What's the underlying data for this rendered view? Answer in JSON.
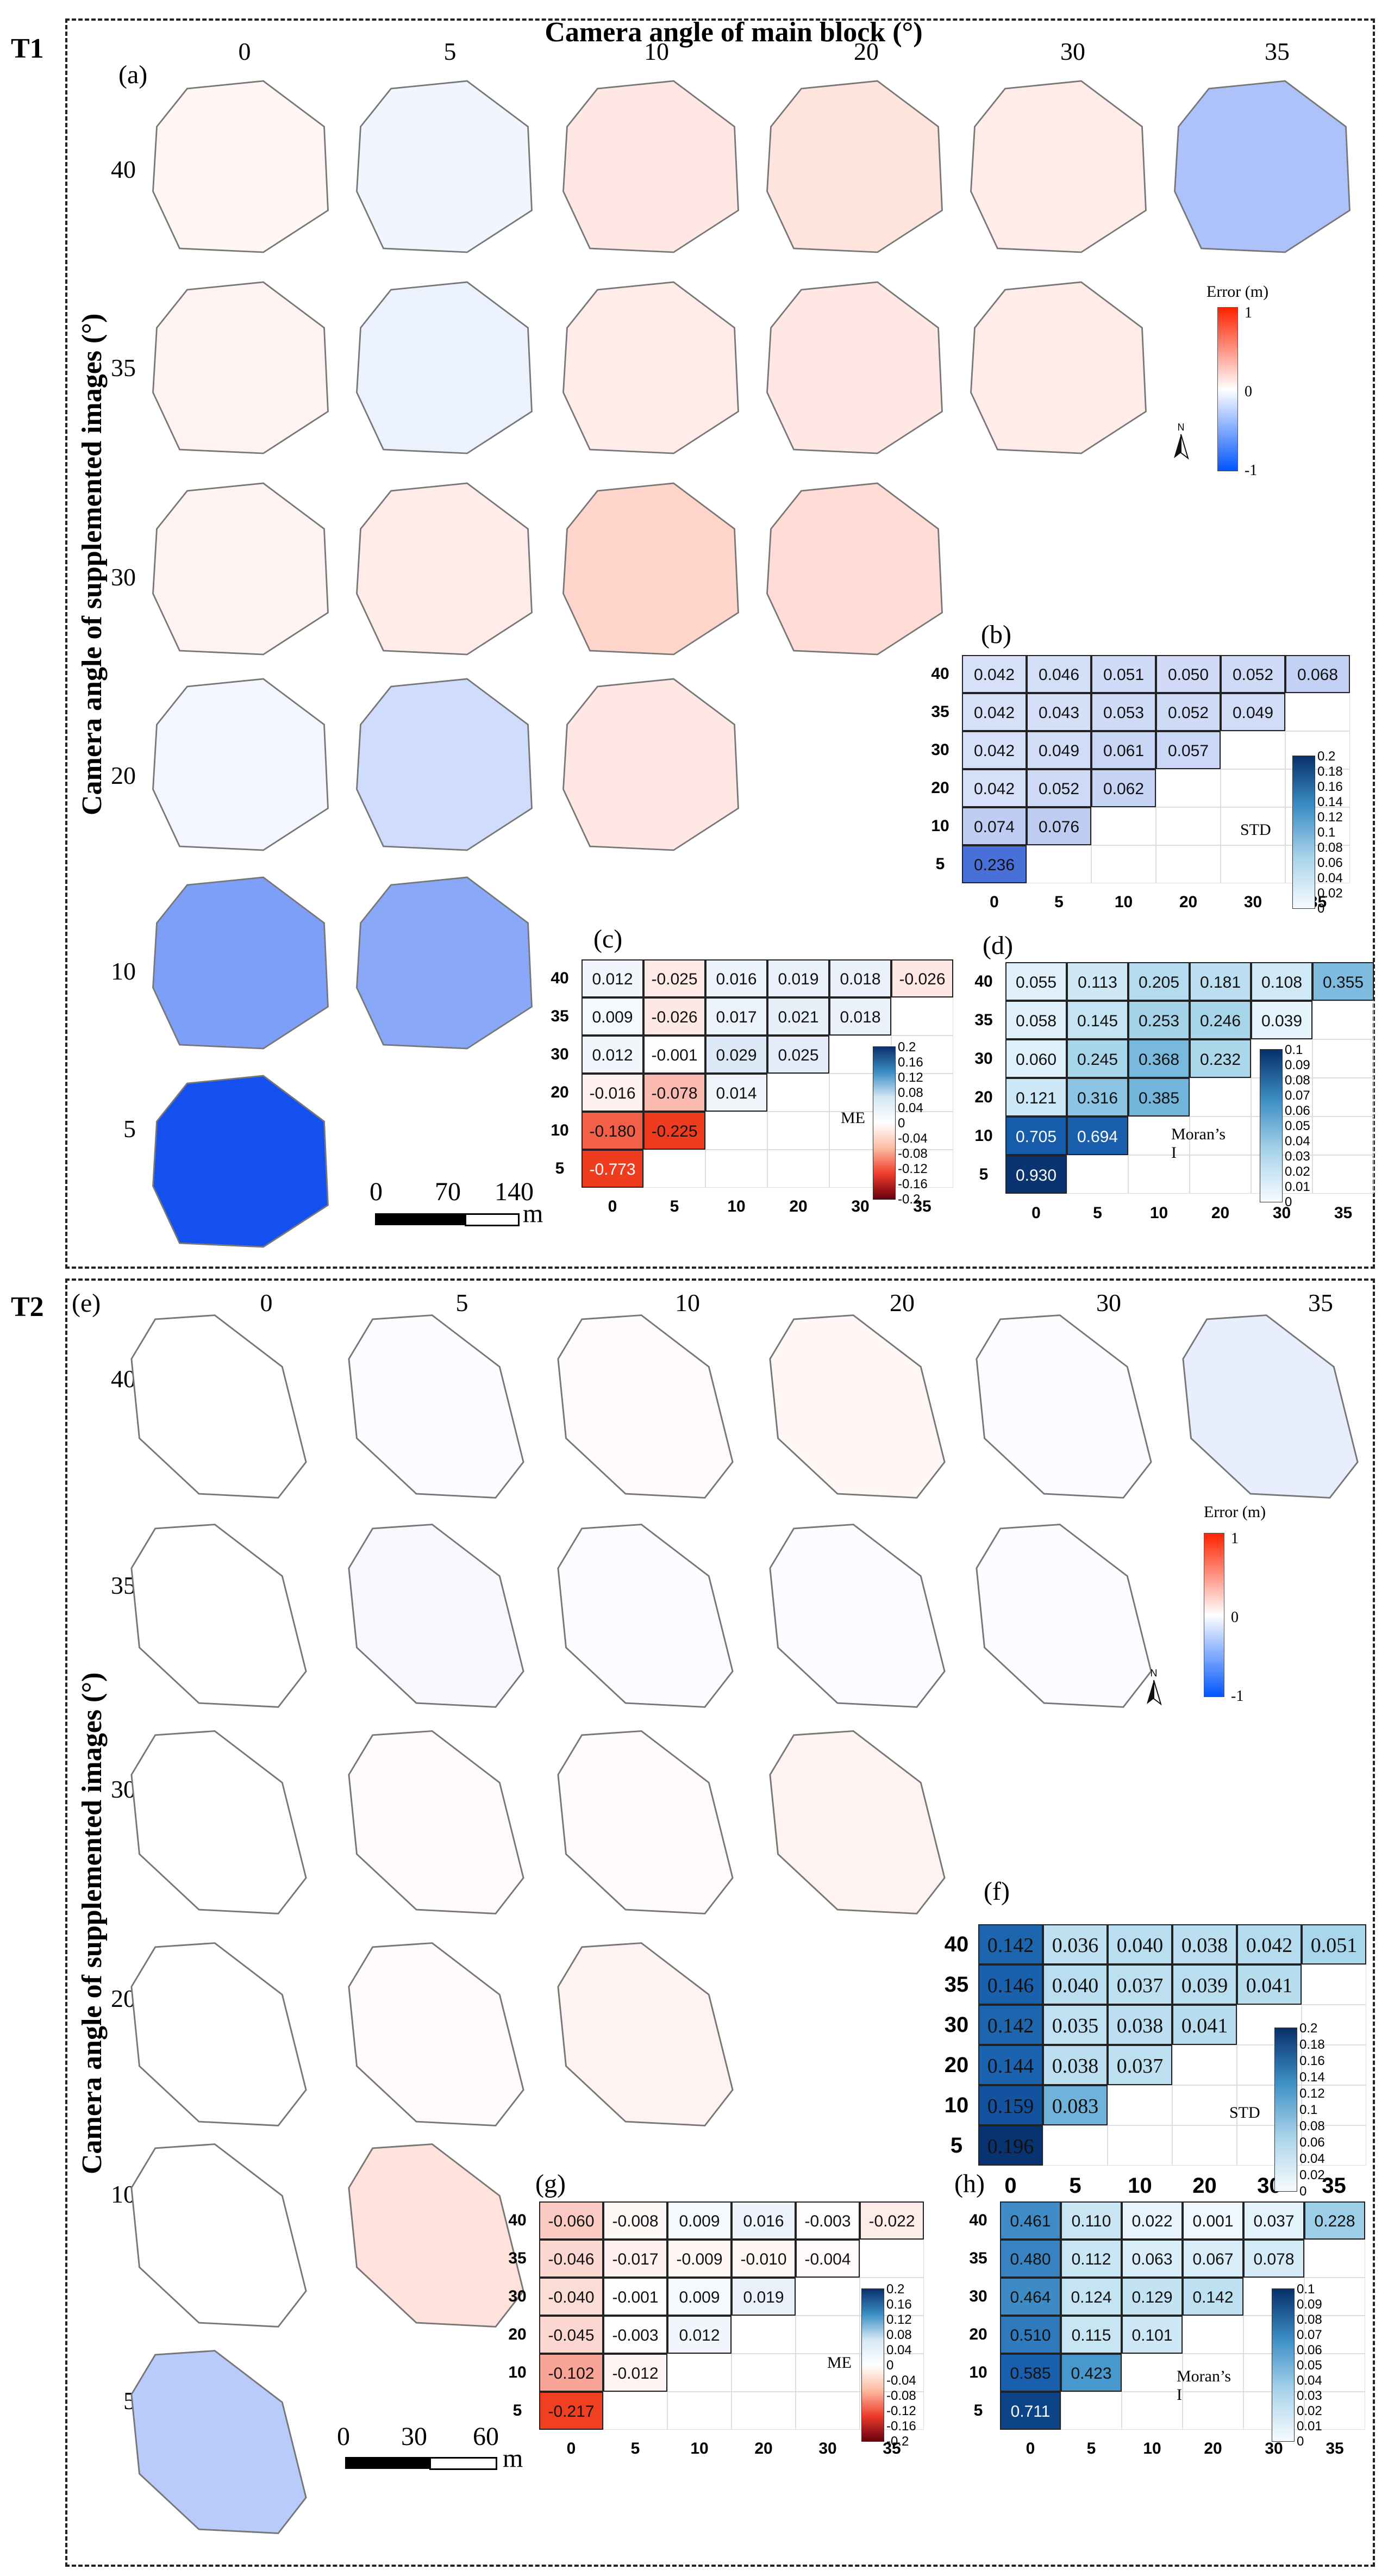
{
  "figure": {
    "main_title": "Camera angle of main block (°)",
    "y_title": "Camera angle of supplemented images (°)"
  },
  "panels": {
    "T1": {
      "label": "T1",
      "map_label": "(a)",
      "col_headers": [
        "0",
        "5",
        "10",
        "20",
        "30",
        "35"
      ],
      "row_headers": [
        "40",
        "35",
        "30",
        "20",
        "10",
        "5"
      ],
      "error_colorbar": {
        "title": "Error (m)",
        "ticks": [
          "1",
          "0",
          "-1"
        ],
        "colors": {
          "pos": "#ff2200",
          "mid": "#ffffff",
          "neg": "#0055ff"
        }
      },
      "north": "N",
      "scale": {
        "labels": [
          "0",
          "70",
          "140"
        ],
        "unit": "m"
      },
      "map_errors": [
        [
          0.05,
          -0.06,
          0.12,
          0.14,
          0.1,
          -0.35
        ],
        [
          0.06,
          -0.08,
          0.1,
          0.12,
          0.1
        ],
        [
          0.06,
          0.1,
          0.22,
          0.18
        ],
        [
          -0.05,
          -0.2,
          0.12
        ],
        [
          -0.55,
          -0.5
        ],
        [
          -1.0
        ]
      ],
      "std": {
        "label": "(b)",
        "metric": "STD",
        "rows": [
          "40",
          "35",
          "30",
          "20",
          "10",
          "5"
        ],
        "cols": [
          "0",
          "5",
          "10",
          "20",
          "30",
          "35"
        ],
        "values": [
          [
            "0.042",
            "0.046",
            "0.051",
            "0.050",
            "0.052",
            "0.068"
          ],
          [
            "0.042",
            "0.043",
            "0.053",
            "0.052",
            "0.049"
          ],
          [
            "0.042",
            "0.049",
            "0.061",
            "0.057"
          ],
          [
            "0.042",
            "0.052",
            "0.062"
          ],
          [
            "0.074",
            "0.076"
          ],
          [
            "0.236"
          ]
        ],
        "colorbar": {
          "ticks": [
            "0.2",
            "0.18",
            "0.16",
            "0.14",
            "0.12",
            "0.1",
            "0.08",
            "0.06",
            "0.04",
            "0.02",
            "0"
          ]
        }
      },
      "me": {
        "label": "(c)",
        "metric": "ME",
        "rows": [
          "40",
          "35",
          "30",
          "20",
          "10",
          "5"
        ],
        "cols": [
          "0",
          "5",
          "10",
          "20",
          "30",
          "35"
        ],
        "values": [
          [
            "0.012",
            "-0.025",
            "0.016",
            "0.019",
            "0.018",
            "-0.026"
          ],
          [
            "0.009",
            "-0.026",
            "0.017",
            "0.021",
            "0.018"
          ],
          [
            "0.012",
            "-0.001",
            "0.029",
            "0.025"
          ],
          [
            "-0.016",
            "-0.078",
            "0.014"
          ],
          [
            "-0.180",
            "-0.225"
          ],
          [
            "-0.773"
          ]
        ],
        "colorbar": {
          "ticks": [
            "0.2",
            "0.16",
            "0.12",
            "0.08",
            "0.04",
            "0",
            "-0.04",
            "-0.08",
            "-0.12",
            "-0.16",
            "-0.2"
          ]
        }
      },
      "moran": {
        "label": "(d)",
        "metric": "Moran’s I",
        "rows": [
          "40",
          "35",
          "30",
          "20",
          "10",
          "5"
        ],
        "cols": [
          "0",
          "5",
          "10",
          "20",
          "30",
          "35"
        ],
        "values": [
          [
            "0.055",
            "0.113",
            "0.205",
            "0.181",
            "0.108",
            "0.355"
          ],
          [
            "0.058",
            "0.145",
            "0.253",
            "0.246",
            "0.039"
          ],
          [
            "0.060",
            "0.245",
            "0.368",
            "0.232"
          ],
          [
            "0.121",
            "0.316",
            "0.385"
          ],
          [
            "0.705",
            "0.694"
          ],
          [
            "0.930"
          ]
        ],
        "colorbar": {
          "ticks": [
            "0.1",
            "0.09",
            "0.08",
            "0.07",
            "0.06",
            "0.05",
            "0.04",
            "0.03",
            "0.02",
            "0.01",
            "0"
          ]
        }
      }
    },
    "T2": {
      "label": "T2",
      "map_label": "(e)",
      "col_headers": [
        "0",
        "5",
        "10",
        "20",
        "30",
        "35"
      ],
      "row_headers": [
        "40",
        "35",
        "30",
        "20",
        "10",
        "5"
      ],
      "error_colorbar": {
        "title": "Error (m)",
        "ticks": [
          "1",
          "0",
          "-1"
        ],
        "colors": {
          "pos": "#ff2200",
          "mid": "#ffffff",
          "neg": "#0055ff"
        }
      },
      "north": "N",
      "scale": {
        "labels": [
          "0",
          "30",
          "60"
        ],
        "unit": "m"
      },
      "map_errors": [
        [
          0.0,
          -0.02,
          0.02,
          0.04,
          -0.02,
          -0.1
        ],
        [
          0.0,
          -0.04,
          -0.02,
          -0.02,
          -0.02
        ],
        [
          0.0,
          0.02,
          0.02,
          0.06
        ],
        [
          0.0,
          0.02,
          0.06
        ],
        [
          0.0,
          0.15
        ],
        [
          -0.3
        ]
      ],
      "std": {
        "label": "(f)",
        "metric": "STD",
        "rows": [
          "40",
          "35",
          "30",
          "20",
          "10",
          "5"
        ],
        "cols": [
          "0",
          "5",
          "10",
          "20",
          "30",
          "35"
        ],
        "values": [
          [
            "0.142",
            "0.036",
            "0.040",
            "0.038",
            "0.042",
            "0.051"
          ],
          [
            "0.146",
            "0.040",
            "0.037",
            "0.039",
            "0.041"
          ],
          [
            "0.142",
            "0.035",
            "0.038",
            "0.041"
          ],
          [
            "0.144",
            "0.038",
            "0.037"
          ],
          [
            "0.159",
            "0.083"
          ],
          [
            "0.196"
          ]
        ],
        "colorbar": {
          "ticks": [
            "0.2",
            "0.18",
            "0.16",
            "0.14",
            "0.12",
            "0.1",
            "0.08",
            "0.06",
            "0.04",
            "0.02",
            "0"
          ]
        }
      },
      "me": {
        "label": "(g)",
        "metric": "ME",
        "rows": [
          "40",
          "35",
          "30",
          "20",
          "10",
          "5"
        ],
        "cols": [
          "0",
          "5",
          "10",
          "20",
          "30",
          "35"
        ],
        "values": [
          [
            "-0.060",
            "-0.008",
            "0.009",
            "0.016",
            "-0.003",
            "-0.022"
          ],
          [
            "-0.046",
            "-0.017",
            "-0.009",
            "-0.010",
            "-0.004"
          ],
          [
            "-0.040",
            "-0.001",
            "0.009",
            "0.019"
          ],
          [
            "-0.045",
            "-0.003",
            "0.012"
          ],
          [
            "-0.102",
            "-0.012"
          ],
          [
            "-0.217"
          ]
        ],
        "colorbar": {
          "ticks": [
            "0.2",
            "0.16",
            "0.12",
            "0.08",
            "0.04",
            "0",
            "-0.04",
            "-0.08",
            "-0.12",
            "-0.16",
            "-0.2"
          ]
        }
      },
      "moran": {
        "label": "(h)",
        "metric": "Moran’s I",
        "rows": [
          "40",
          "35",
          "30",
          "20",
          "10",
          "5"
        ],
        "cols": [
          "0",
          "5",
          "10",
          "20",
          "30",
          "35"
        ],
        "values": [
          [
            "0.461",
            "0.110",
            "0.022",
            "0.001",
            "0.037",
            "0.228"
          ],
          [
            "0.480",
            "0.112",
            "0.063",
            "0.067",
            "0.078"
          ],
          [
            "0.464",
            "0.124",
            "0.129",
            "0.142"
          ],
          [
            "0.510",
            "0.115",
            "0.101"
          ],
          [
            "0.585",
            "0.423"
          ],
          [
            "0.711"
          ]
        ],
        "colorbar": {
          "ticks": [
            "0.1",
            "0.09",
            "0.08",
            "0.07",
            "0.06",
            "0.05",
            "0.04",
            "0.03",
            "0.02",
            "0.01",
            "0"
          ]
        }
      }
    }
  },
  "chart_data": [
    {
      "type": "heatmap",
      "title": "(b) STD",
      "panel": "T1",
      "rows": [
        "40",
        "35",
        "30",
        "20",
        "10",
        "5"
      ],
      "cols": [
        "0",
        "5",
        "10",
        "20",
        "30",
        "35"
      ],
      "values": [
        [
          0.042,
          0.046,
          0.051,
          0.05,
          0.052,
          0.068
        ],
        [
          0.042,
          0.043,
          0.053,
          0.052,
          0.049
        ],
        [
          0.042,
          0.049,
          0.061,
          0.057
        ],
        [
          0.042,
          0.052,
          0.062
        ],
        [
          0.074,
          0.076
        ],
        [
          0.236
        ]
      ],
      "range": [
        0,
        0.2
      ]
    },
    {
      "type": "heatmap",
      "title": "(c) ME",
      "panel": "T1",
      "rows": [
        "40",
        "35",
        "30",
        "20",
        "10",
        "5"
      ],
      "cols": [
        "0",
        "5",
        "10",
        "20",
        "30",
        "35"
      ],
      "values": [
        [
          0.012,
          -0.025,
          0.016,
          0.019,
          0.018,
          -0.026
        ],
        [
          0.009,
          -0.026,
          0.017,
          0.021,
          0.018
        ],
        [
          0.012,
          -0.001,
          0.029,
          0.025
        ],
        [
          -0.016,
          -0.078,
          0.014
        ],
        [
          -0.18,
          -0.225
        ],
        [
          -0.773
        ]
      ],
      "range": [
        -0.2,
        0.2
      ]
    },
    {
      "type": "heatmap",
      "title": "(d) Moran’s I",
      "panel": "T1",
      "rows": [
        "40",
        "35",
        "30",
        "20",
        "10",
        "5"
      ],
      "cols": [
        "0",
        "5",
        "10",
        "20",
        "30",
        "35"
      ],
      "values": [
        [
          0.055,
          0.113,
          0.205,
          0.181,
          0.108,
          0.355
        ],
        [
          0.058,
          0.145,
          0.253,
          0.246,
          0.039
        ],
        [
          0.06,
          0.245,
          0.368,
          0.232
        ],
        [
          0.121,
          0.316,
          0.385
        ],
        [
          0.705,
          0.694
        ],
        [
          0.93
        ]
      ],
      "range": [
        0,
        0.1
      ]
    },
    {
      "type": "heatmap",
      "title": "(f) STD",
      "panel": "T2",
      "rows": [
        "40",
        "35",
        "30",
        "20",
        "10",
        "5"
      ],
      "cols": [
        "0",
        "5",
        "10",
        "20",
        "30",
        "35"
      ],
      "values": [
        [
          0.142,
          0.036,
          0.04,
          0.038,
          0.042,
          0.051
        ],
        [
          0.146,
          0.04,
          0.037,
          0.039,
          0.041
        ],
        [
          0.142,
          0.035,
          0.038,
          0.041
        ],
        [
          0.144,
          0.038,
          0.037
        ],
        [
          0.159,
          0.083
        ],
        [
          0.196
        ]
      ],
      "range": [
        0,
        0.2
      ]
    },
    {
      "type": "heatmap",
      "title": "(g) ME",
      "panel": "T2",
      "rows": [
        "40",
        "35",
        "30",
        "20",
        "10",
        "5"
      ],
      "cols": [
        "0",
        "5",
        "10",
        "20",
        "30",
        "35"
      ],
      "values": [
        [
          -0.06,
          -0.008,
          0.009,
          0.016,
          -0.003,
          -0.022
        ],
        [
          -0.046,
          -0.017,
          -0.009,
          -0.01,
          -0.004
        ],
        [
          -0.04,
          -0.001,
          0.009,
          0.019
        ],
        [
          -0.045,
          -0.003,
          0.012
        ],
        [
          -0.102,
          -0.012
        ],
        [
          -0.217
        ]
      ],
      "range": [
        -0.2,
        0.2
      ]
    },
    {
      "type": "heatmap",
      "title": "(h) Moran’s I",
      "panel": "T2",
      "rows": [
        "40",
        "35",
        "30",
        "20",
        "10",
        "5"
      ],
      "cols": [
        "0",
        "5",
        "10",
        "20",
        "30",
        "35"
      ],
      "values": [
        [
          0.461,
          0.11,
          0.022,
          0.001,
          0.037,
          0.228
        ],
        [
          0.48,
          0.112,
          0.063,
          0.067,
          0.078
        ],
        [
          0.464,
          0.124,
          0.129,
          0.142
        ],
        [
          0.51,
          0.115,
          0.101
        ],
        [
          0.585,
          0.423
        ],
        [
          0.711
        ]
      ],
      "range": [
        0,
        0.1
      ]
    }
  ]
}
